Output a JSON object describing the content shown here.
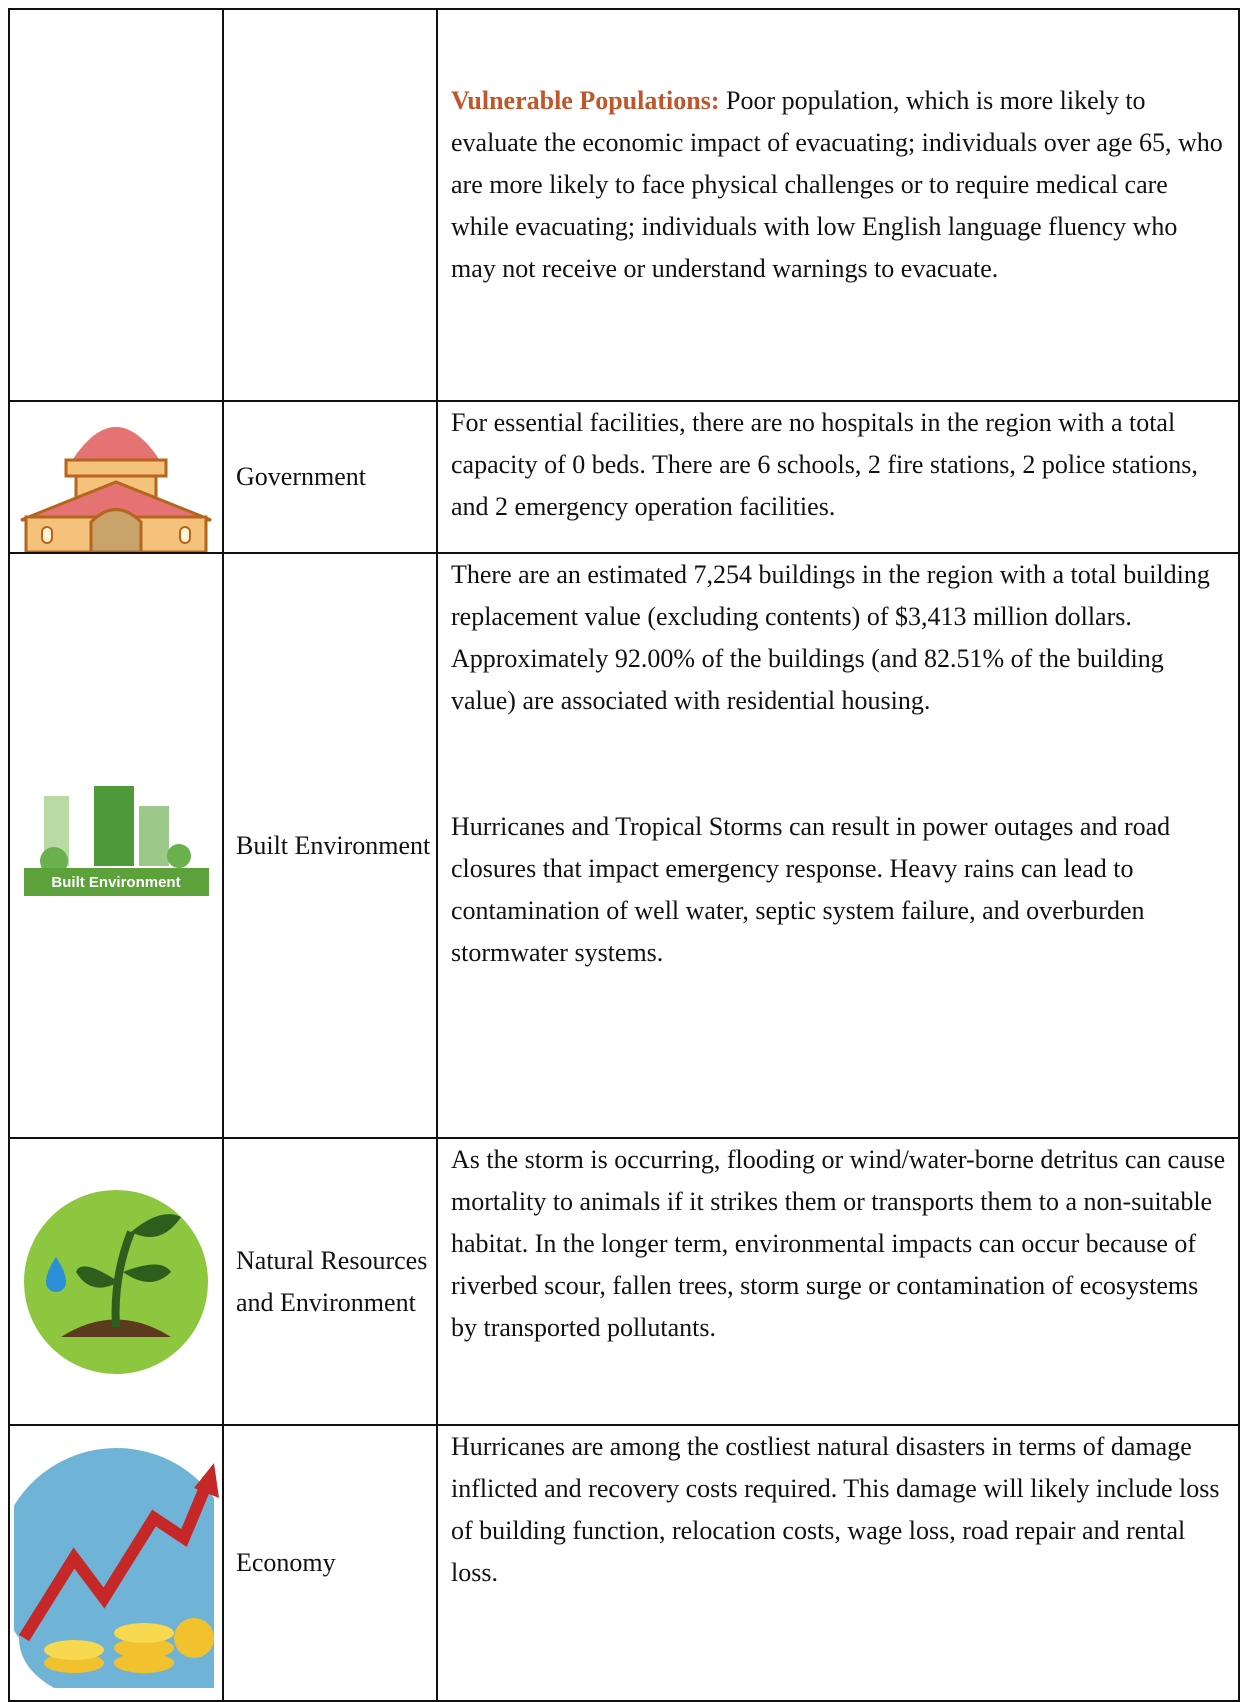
{
  "table": {
    "rows": [
      {
        "title": "Vulnerable Populations:",
        "paragraphs": [
          "Poor population, which is more likely to evaluate the economic impact of evacuating; individuals over age 65, who are more likely to face physical challenges or to require medical care while evacuating; individuals with low English language fluency who may not receive or understand warnings to evacuate."
        ]
      },
      {
        "category": "Government",
        "paragraphs": [
          "For essential facilities, there are no hospitals in the region with a total capacity of 0 beds.  There are 6 schools, 2 fire stations, 2 police stations, and 2 emergency operation facilities."
        ]
      },
      {
        "category": "Built Environment",
        "icon_label": "Built Environment",
        "paragraphs": [
          "There are an estimated 7,254 buildings in the region with a total building replacement value (excluding contents) of $3,413 million dollars. Approximately 92.00% of the buildings (and 82.51% of the building value) are associated with residential housing.",
          "Hurricanes and Tropical Storms can result in power outages and road closures that impact emergency response. Heavy rains can lead to contamination of well water, septic system failure, and overburden stormwater systems."
        ]
      },
      {
        "category": "Natural Resources and Environment",
        "paragraphs": [
          "As the storm is occurring, flooding or wind/water-borne detritus can cause mortality to animals if it strikes them or transports them to a non-suitable habitat. In the longer term, environmental impacts can occur because of riverbed scour, fallen trees, storm surge or contamination of ecosystems by transported pollutants."
        ]
      },
      {
        "category": "Economy",
        "paragraphs": [
          "Hurricanes are among the costliest natural disasters in terms of damage inflicted and recovery costs required. This damage will likely include loss of building function, relocation costs, wage loss, road repair and rental loss."
        ]
      }
    ]
  }
}
